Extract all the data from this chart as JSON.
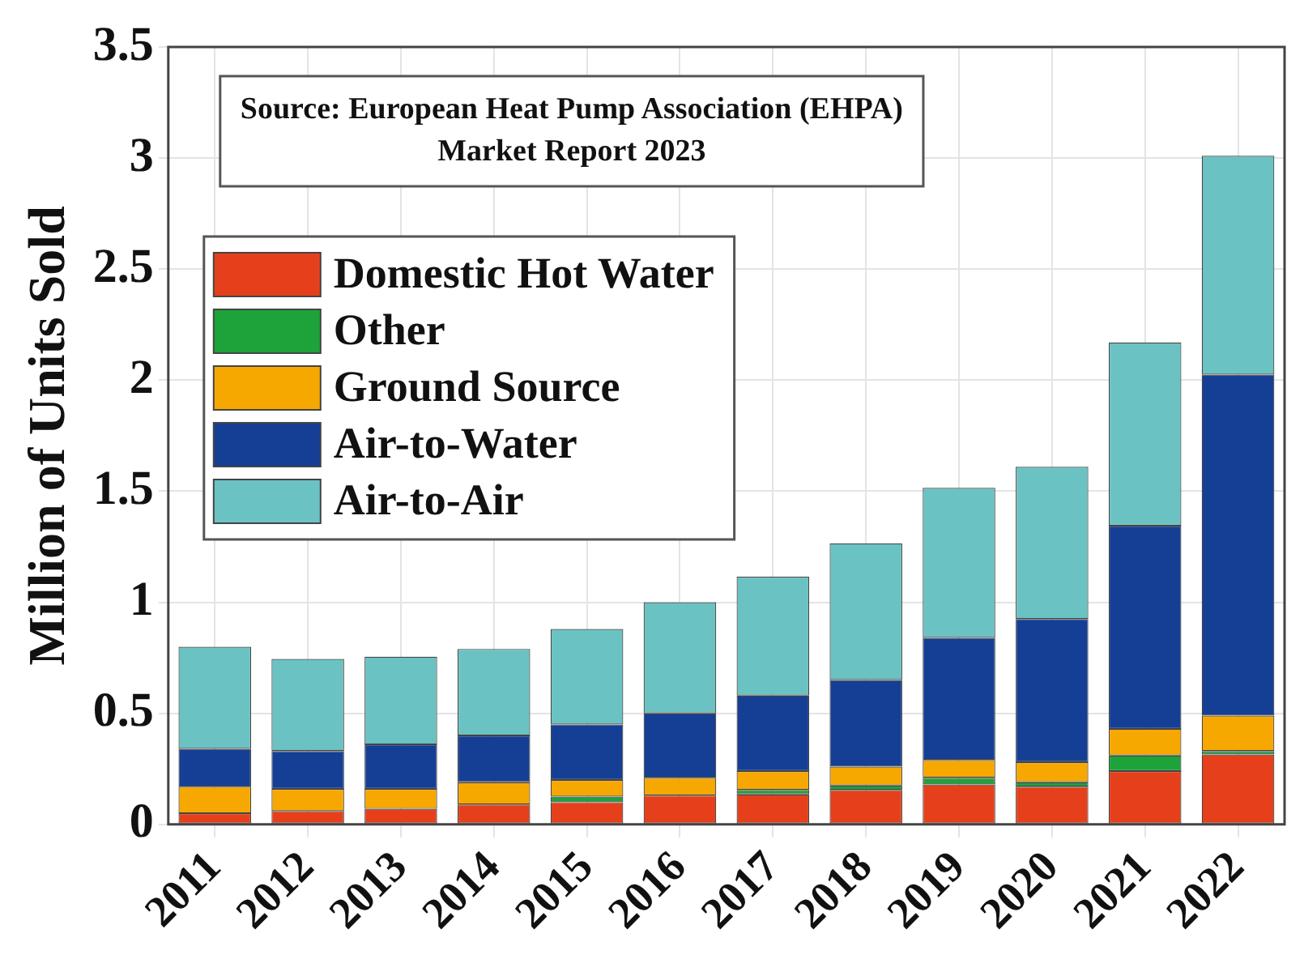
{
  "chart_data": {
    "type": "bar",
    "stacked": true,
    "ylabel": "Million of Units Sold",
    "annotations": [
      "Source: European Heat Pump Association (EHPA)",
      "Market Report 2023"
    ],
    "categories": [
      "2011",
      "2012",
      "2013",
      "2014",
      "2015",
      "2016",
      "2017",
      "2018",
      "2019",
      "2020",
      "2021",
      "2022"
    ],
    "series": [
      {
        "name": "Domestic Hot Water",
        "color": "#e5401b",
        "values": [
          0.05,
          0.06,
          0.07,
          0.09,
          0.1,
          0.13,
          0.135,
          0.155,
          0.18,
          0.17,
          0.24,
          0.315
        ]
      },
      {
        "name": "Other",
        "color": "#1ea23a",
        "values": [
          0,
          0,
          0,
          0,
          0.025,
          0,
          0.02,
          0.02,
          0.03,
          0.02,
          0.07,
          0.015
        ]
      },
      {
        "name": "Ground Source",
        "color": "#f7a800",
        "values": [
          0.12,
          0.1,
          0.09,
          0.1,
          0.075,
          0.08,
          0.085,
          0.085,
          0.08,
          0.09,
          0.12,
          0.16
        ]
      },
      {
        "name": "Air-to-Water",
        "color": "#153f94",
        "values": [
          0.17,
          0.17,
          0.2,
          0.21,
          0.25,
          0.29,
          0.34,
          0.39,
          0.55,
          0.645,
          0.915,
          1.535
        ]
      },
      {
        "name": "Air-to-Air",
        "color": "#6bc2c2",
        "values": [
          0.46,
          0.415,
          0.395,
          0.39,
          0.43,
          0.5,
          0.535,
          0.615,
          0.675,
          0.685,
          0.825,
          0.985
        ]
      }
    ],
    "ylim": [
      0,
      3.5
    ],
    "yticks": [
      0,
      0.5,
      1,
      1.5,
      2,
      2.5,
      3,
      3.5
    ],
    "grid": true,
    "legend": "top left"
  }
}
